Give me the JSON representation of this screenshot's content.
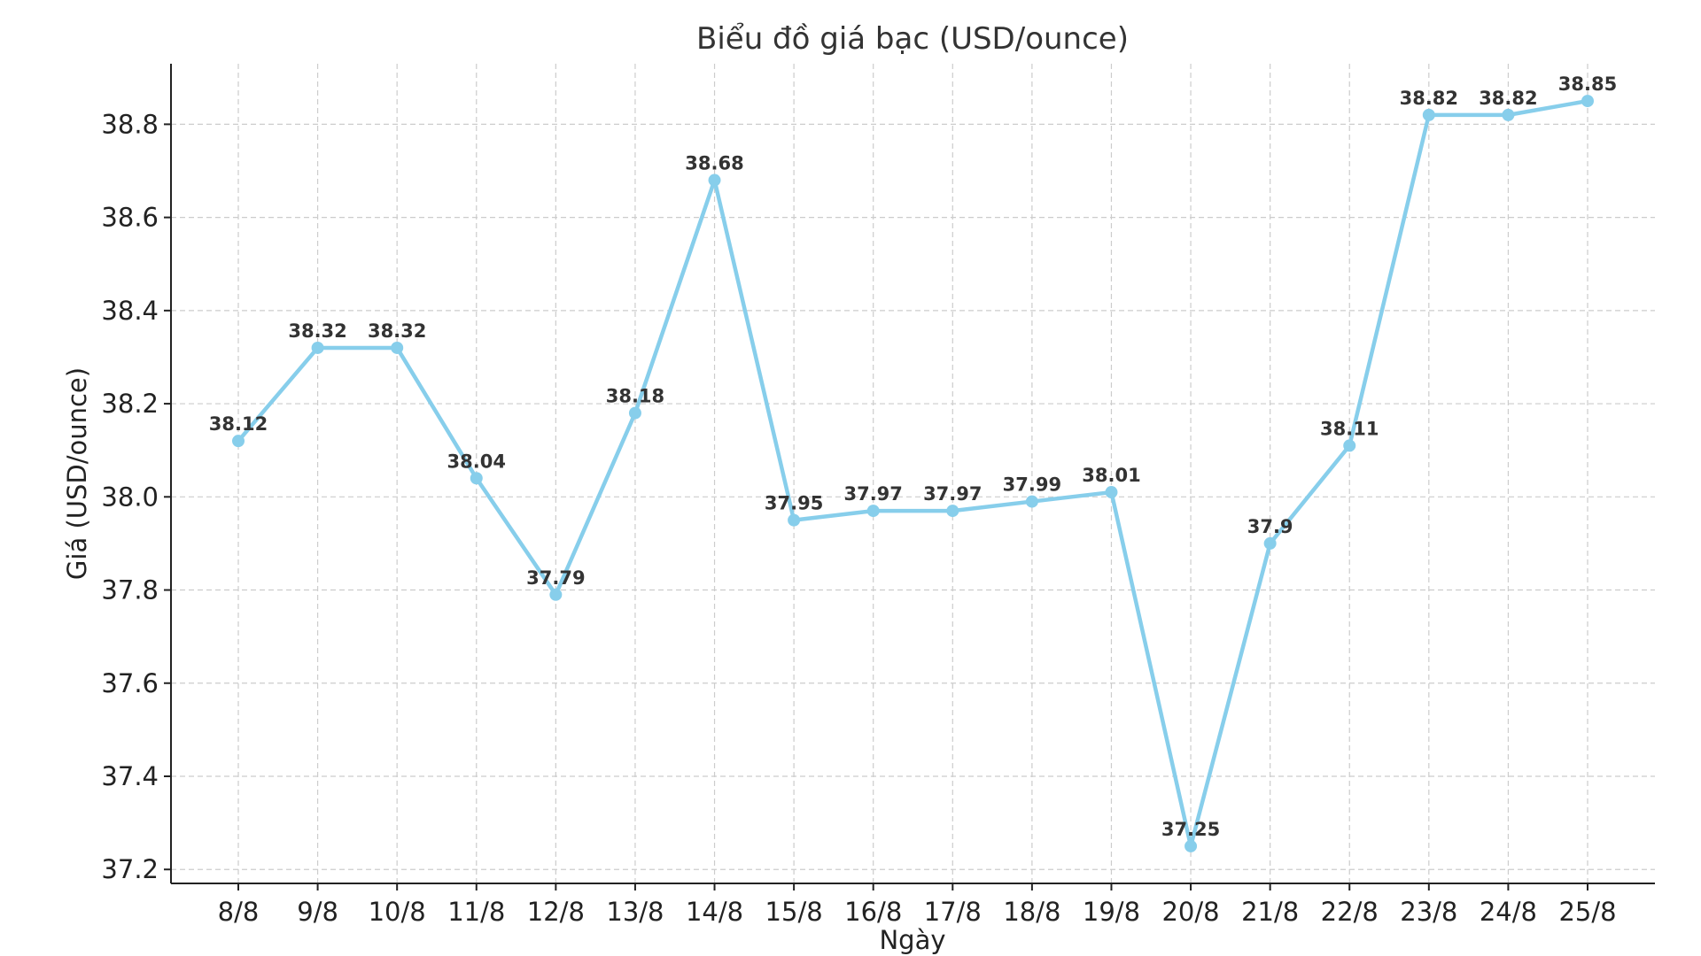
{
  "chart_data": {
    "type": "line",
    "title": "Biểu đồ giá bạc (USD/ounce)",
    "xlabel": "Ngày",
    "ylabel": "Giá (USD/ounce)",
    "categories": [
      "8/8",
      "9/8",
      "10/8",
      "11/8",
      "12/8",
      "13/8",
      "14/8",
      "15/8",
      "16/8",
      "17/8",
      "18/8",
      "19/8",
      "20/8",
      "21/8",
      "22/8",
      "23/8",
      "24/8",
      "25/8"
    ],
    "series": [
      {
        "values": [
          38.12,
          38.32,
          38.32,
          38.04,
          37.79,
          38.18,
          38.68,
          37.95,
          37.97,
          37.97,
          37.99,
          38.01,
          37.25,
          37.9,
          38.11,
          38.82,
          38.82,
          38.85
        ],
        "labels": [
          "38.12",
          "38.32",
          "38.32",
          "38.04",
          "37.79",
          "38.18",
          "38.68",
          "37.95",
          "37.97",
          "37.97",
          "37.99",
          "38.01",
          "37.25",
          "37.9",
          "38.11",
          "38.82",
          "38.82",
          "38.85"
        ],
        "color": "#87CEEB"
      }
    ],
    "yticks": [
      37.2,
      37.4,
      37.6,
      37.8,
      38.0,
      38.2,
      38.4,
      38.6,
      38.8
    ],
    "ytick_labels": [
      "37.2",
      "37.4",
      "37.6",
      "37.8",
      "38.0",
      "38.2",
      "38.4",
      "38.6",
      "38.8"
    ],
    "ylim": [
      37.17,
      38.93
    ],
    "grid": true
  }
}
